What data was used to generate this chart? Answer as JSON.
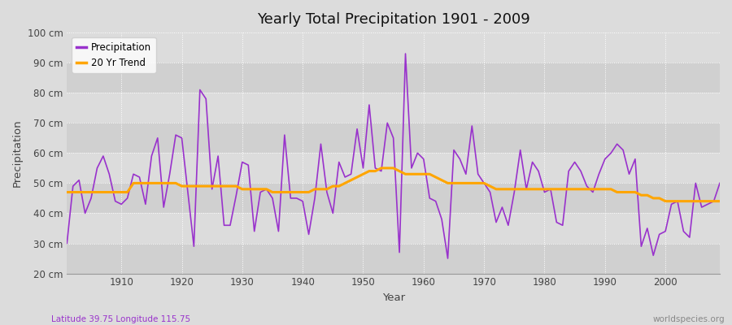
{
  "title": "Yearly Total Precipitation 1901 - 2009",
  "ylabel": "Precipitation",
  "xlabel": "Year",
  "precipitation_color": "#9932CC",
  "trend_color": "#FFA500",
  "background_color": "#DCDCDC",
  "plot_bg_color": "#DCDCDC",
  "grid_color": "#FFFFFF",
  "ylim": [
    20,
    100
  ],
  "yticks": [
    20,
    30,
    40,
    50,
    60,
    70,
    80,
    90,
    100
  ],
  "footnote_left": "Latitude 39.75 Longitude 115.75",
  "footnote_right": "worldspecies.org",
  "footnote_left_color": "#9932CC",
  "footnote_right_color": "#888888",
  "precipitation": [
    30,
    49,
    51,
    40,
    45,
    55,
    59,
    53,
    44,
    43,
    45,
    53,
    52,
    43,
    59,
    65,
    42,
    53,
    66,
    65,
    47,
    29,
    81,
    78,
    48,
    59,
    36,
    36,
    46,
    57,
    56,
    34,
    47,
    48,
    45,
    34,
    66,
    45,
    45,
    44,
    33,
    45,
    63,
    47,
    40,
    57,
    52,
    53,
    68,
    55,
    76,
    55,
    54,
    70,
    65,
    27,
    93,
    55,
    60,
    58,
    45,
    44,
    38,
    25,
    61,
    58,
    53,
    69,
    53,
    50,
    47,
    37,
    42,
    36,
    47,
    61,
    48,
    57,
    54,
    47,
    48,
    37,
    36,
    54,
    57,
    54,
    49,
    47,
    53,
    58,
    60,
    63,
    61,
    53,
    58,
    29,
    35,
    26,
    33,
    34,
    43,
    44,
    34,
    32,
    50,
    42,
    43,
    44,
    50
  ],
  "trend": [
    47,
    47,
    47,
    47,
    47,
    47,
    47,
    47,
    47,
    47,
    47,
    50,
    50,
    50,
    50,
    50,
    50,
    50,
    50,
    49,
    49,
    49,
    49,
    49,
    49,
    49,
    49,
    49,
    49,
    48,
    48,
    48,
    48,
    48,
    47,
    47,
    47,
    47,
    47,
    47,
    47,
    48,
    48,
    48,
    49,
    49,
    50,
    51,
    52,
    53,
    54,
    54,
    55,
    55,
    55,
    54,
    53,
    53,
    53,
    53,
    53,
    52,
    51,
    50,
    50,
    50,
    50,
    50,
    50,
    50,
    49,
    48,
    48,
    48,
    48,
    48,
    48,
    48,
    48,
    48,
    48,
    48,
    48,
    48,
    48,
    48,
    48,
    48,
    48,
    48,
    48,
    47,
    47,
    47,
    47,
    46,
    46,
    45,
    45,
    44,
    44,
    44,
    44,
    44,
    44,
    44,
    44,
    44,
    44
  ]
}
